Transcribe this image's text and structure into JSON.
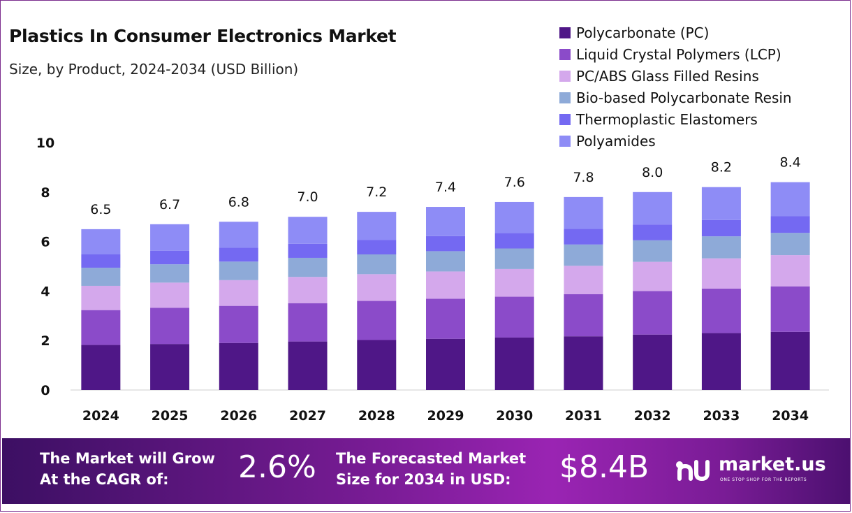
{
  "chart_data": {
    "type": "bar",
    "stacked": true,
    "title": "Plastics In Consumer Electronics Market",
    "subtitle": "Size, by Product, 2024-2034 (USD Billion)",
    "xlabel": "",
    "ylabel": "",
    "ylim": [
      0,
      10
    ],
    "yticks": [
      0,
      2,
      4,
      6,
      8,
      10
    ],
    "grid": false,
    "legend_position": "top-right",
    "categories": [
      "2024",
      "2025",
      "2026",
      "2027",
      "2028",
      "2029",
      "2030",
      "2031",
      "2032",
      "2033",
      "2034"
    ],
    "totals": [
      6.5,
      6.7,
      6.8,
      7.0,
      7.2,
      7.4,
      7.6,
      7.8,
      8.0,
      8.2,
      8.4
    ],
    "total_labels": [
      "6.5",
      "6.7",
      "6.8",
      "7.0",
      "7.2",
      "7.4",
      "7.6",
      "7.8",
      "8.0",
      "8.2",
      "8.4"
    ],
    "series": [
      {
        "name": "Polycarbonate (PC)",
        "color": "#4f1787",
        "values": [
          1.82,
          1.86,
          1.9,
          1.96,
          2.02,
          2.07,
          2.12,
          2.17,
          2.24,
          2.3,
          2.35
        ]
      },
      {
        "name": "Liquid Crystal Polymers (LCP)",
        "color": "#8b4bc9",
        "values": [
          1.41,
          1.46,
          1.5,
          1.55,
          1.58,
          1.62,
          1.65,
          1.7,
          1.76,
          1.8,
          1.84
        ]
      },
      {
        "name": "PC/ABS Glass Filled Resins",
        "color": "#d4a8ec",
        "values": [
          0.98,
          1.02,
          1.04,
          1.06,
          1.08,
          1.1,
          1.12,
          1.15,
          1.18,
          1.22,
          1.26
        ]
      },
      {
        "name": "Bio-based Polycarbonate Resin",
        "color": "#8eaad8",
        "values": [
          0.73,
          0.74,
          0.75,
          0.77,
          0.8,
          0.82,
          0.83,
          0.86,
          0.87,
          0.89,
          0.9
        ]
      },
      {
        "name": "Thermoplastic Elastomers",
        "color": "#7469f2",
        "values": [
          0.54,
          0.55,
          0.56,
          0.57,
          0.58,
          0.61,
          0.62,
          0.63,
          0.64,
          0.66,
          0.67
        ]
      },
      {
        "name": "Polyamides",
        "color": "#8e8cf6",
        "values": [
          1.02,
          1.07,
          1.05,
          1.09,
          1.14,
          1.18,
          1.26,
          1.29,
          1.31,
          1.33,
          1.38
        ]
      }
    ]
  },
  "footer": {
    "cagr_text_line1": "The Market will Grow",
    "cagr_text_line2": "At the CAGR of:",
    "cagr_value": "2.6%",
    "forecast_text_line1": "The Forecasted Market",
    "forecast_text_line2": "Size for 2034 in USD:",
    "forecast_value": "$8.4B",
    "logo_name": "market.us",
    "logo_tagline": "ONE STOP SHOP FOR THE REPORTS",
    "logo_icon": "market-us-logo-icon"
  }
}
